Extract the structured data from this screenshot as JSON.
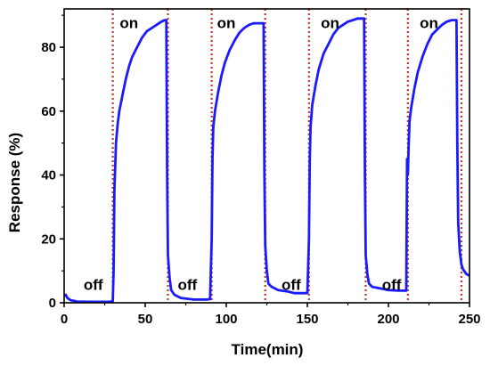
{
  "chart_data": {
    "type": "line",
    "xlabel": "Time(min)",
    "ylabel": "Response (%)",
    "xlim": [
      0,
      250
    ],
    "ylim": [
      0,
      92
    ],
    "xticks": [
      0,
      50,
      100,
      150,
      200,
      250
    ],
    "yticks": [
      0,
      20,
      40,
      60,
      80
    ],
    "grid": false,
    "series_color": "#1a1aff",
    "marker_color": "#c0392b",
    "switch_times": [
      30,
      64,
      91,
      124,
      151,
      186,
      212,
      245
    ],
    "annotations": [
      {
        "text": "off",
        "x": 18,
        "y": 4
      },
      {
        "text": "on",
        "x": 40,
        "y": 86
      },
      {
        "text": "off",
        "x": 76,
        "y": 4
      },
      {
        "text": "on",
        "x": 100,
        "y": 86
      },
      {
        "text": "off",
        "x": 140,
        "y": 4
      },
      {
        "text": "on",
        "x": 164,
        "y": 86
      },
      {
        "text": "off",
        "x": 202,
        "y": 4
      },
      {
        "text": "on",
        "x": 225,
        "y": 86
      }
    ],
    "series": [
      {
        "values": [
          [
            0,
            2
          ],
          [
            1,
            2.5
          ],
          [
            2,
            1.5
          ],
          [
            4,
            0.8
          ],
          [
            8,
            0.4
          ],
          [
            15,
            0.3
          ],
          [
            22,
            0.3
          ],
          [
            28,
            0.3
          ],
          [
            30,
            0.5
          ],
          [
            30.5,
            10
          ],
          [
            31,
            35
          ],
          [
            32,
            50
          ],
          [
            33,
            56
          ],
          [
            34,
            60
          ],
          [
            36,
            65
          ],
          [
            38,
            70
          ],
          [
            40,
            74
          ],
          [
            42,
            77
          ],
          [
            45,
            80
          ],
          [
            48,
            83
          ],
          [
            51,
            85
          ],
          [
            54,
            86
          ],
          [
            57,
            87
          ],
          [
            60,
            88
          ],
          [
            62,
            88.5
          ],
          [
            63,
            88.5
          ],
          [
            63.5,
            40
          ],
          [
            64,
            15
          ],
          [
            65,
            8
          ],
          [
            66,
            4
          ],
          [
            68,
            2.5
          ],
          [
            72,
            1.5
          ],
          [
            80,
            1
          ],
          [
            88,
            1
          ],
          [
            90,
            1.2
          ],
          [
            91,
            20
          ],
          [
            91.5,
            45
          ],
          [
            92,
            55
          ],
          [
            93,
            60
          ],
          [
            95,
            66
          ],
          [
            97,
            71
          ],
          [
            99,
            75
          ],
          [
            102,
            79
          ],
          [
            105,
            82
          ],
          [
            108,
            84.5
          ],
          [
            111,
            86
          ],
          [
            114,
            87
          ],
          [
            117,
            87.5
          ],
          [
            120,
            87.5
          ],
          [
            122,
            87.5
          ],
          [
            123,
            87.5
          ],
          [
            123.5,
            40
          ],
          [
            124,
            18
          ],
          [
            125,
            10
          ],
          [
            126,
            6
          ],
          [
            128,
            5
          ],
          [
            132,
            4
          ],
          [
            138,
            3.5
          ],
          [
            142,
            3
          ],
          [
            148,
            3
          ],
          [
            150,
            3
          ],
          [
            151,
            20
          ],
          [
            151.5,
            45
          ],
          [
            152,
            55
          ],
          [
            153,
            62
          ],
          [
            155,
            68
          ],
          [
            157,
            73
          ],
          [
            160,
            78
          ],
          [
            163,
            81
          ],
          [
            166,
            84
          ],
          [
            169,
            86
          ],
          [
            172,
            87
          ],
          [
            175,
            88
          ],
          [
            178,
            88.5
          ],
          [
            181,
            89
          ],
          [
            184,
            89
          ],
          [
            185,
            89
          ],
          [
            185.5,
            40
          ],
          [
            186,
            15
          ],
          [
            187,
            9
          ],
          [
            188,
            6
          ],
          [
            190,
            5
          ],
          [
            195,
            4.5
          ],
          [
            200,
            4
          ],
          [
            206,
            3.8
          ],
          [
            211,
            3.8
          ],
          [
            211.5,
            45
          ],
          [
            212,
            40
          ],
          [
            212.5,
            50
          ],
          [
            213,
            57
          ],
          [
            214,
            61
          ],
          [
            216,
            67
          ],
          [
            218,
            72
          ],
          [
            221,
            77
          ],
          [
            224,
            81
          ],
          [
            227,
            84
          ],
          [
            230,
            85.5
          ],
          [
            233,
            87
          ],
          [
            236,
            88
          ],
          [
            239,
            88.5
          ],
          [
            241,
            88.5
          ],
          [
            242,
            88.5
          ],
          [
            242.5,
            50
          ],
          [
            243,
            25
          ],
          [
            244,
            16
          ],
          [
            245,
            12
          ],
          [
            246,
            10.5
          ],
          [
            248,
            9
          ],
          [
            250,
            8.5
          ]
        ]
      }
    ]
  }
}
